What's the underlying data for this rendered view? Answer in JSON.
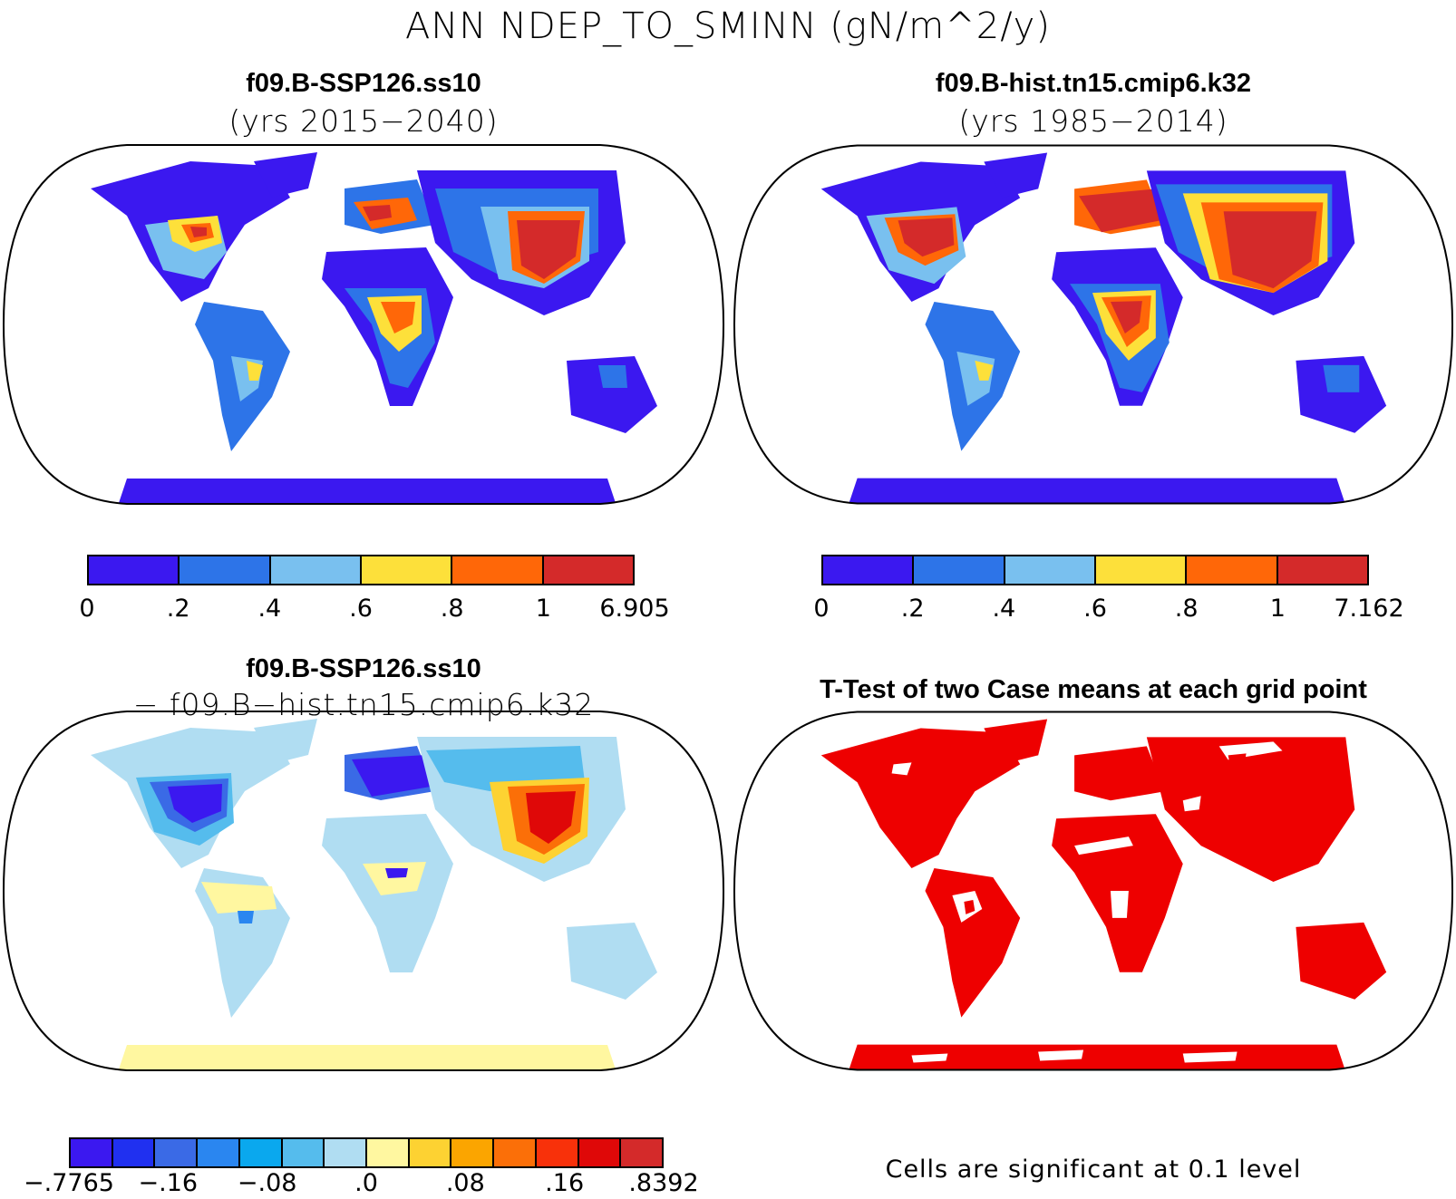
{
  "title": "ANN NDEP_TO_SMINN (gN/m^2/y)",
  "panels": {
    "top_left": {
      "title": "f09.B-SSP126.ss10",
      "subtitle": "(yrs 2015−2040)"
    },
    "top_right": {
      "title": "f09.B-hist.tn15.cmip6.k32",
      "subtitle": "(yrs 1985−2014)"
    },
    "bottom_left": {
      "title": "f09.B-SSP126.ss10",
      "subtitle": "− f09.B−hist.tn15.cmip6.k32"
    },
    "bottom_right": {
      "title": "T-Test of two Case means at each grid point",
      "note": "Cells are significant at 0.1 level"
    }
  },
  "colorbars": {
    "top_left": {
      "colors": [
        "#3b18f0",
        "#2d74e8",
        "#79c0ef",
        "#fde03a",
        "#ff6708",
        "#d42a2a"
      ],
      "labels": [
        "0",
        ".2",
        ".4",
        ".6",
        ".8",
        "1",
        "6.905"
      ]
    },
    "top_right": {
      "colors": [
        "#3b18f0",
        "#2d74e8",
        "#79c0ef",
        "#fde03a",
        "#ff6708",
        "#d42a2a"
      ],
      "labels": [
        "0",
        ".2",
        ".4",
        ".6",
        ".8",
        "1",
        "7.162"
      ]
    },
    "bottom_left": {
      "colors": [
        "#3b18f0",
        "#2030f0",
        "#3a6ae6",
        "#2a86f0",
        "#0aa8ee",
        "#55bced",
        "#b0ddf2",
        "#fff7a0",
        "#fdd232",
        "#fba500",
        "#fb6f08",
        "#f8310a",
        "#df0808",
        "#d42a2a"
      ],
      "labels": [
        "−.7765",
        "−.16",
        "−.08",
        ".0",
        ".08",
        ".16",
        ".8392"
      ]
    }
  },
  "map_colors": {
    "low": "#3b18f0",
    "mid_low": "#2d74e8",
    "mid": "#79c0ef",
    "mid_high": "#fde03a",
    "high": "#ff6708",
    "top": "#d42a2a",
    "diff_base": "#b0ddf2",
    "diff_pos": "#fff7a0",
    "significant": "#ee0000"
  }
}
